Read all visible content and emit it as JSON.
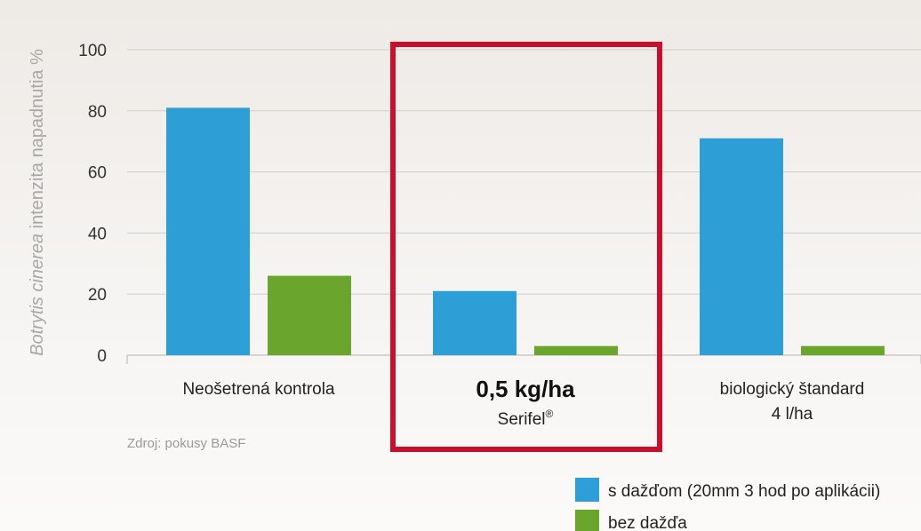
{
  "chart_data": {
    "type": "bar",
    "ylabel_italic": "Botrytis cinerea",
    "ylabel_rest": "intenzita napadnutia %",
    "ylim": [
      0,
      100
    ],
    "yticks": [
      "0",
      "20",
      "40",
      "60",
      "80",
      "100"
    ],
    "grid": true,
    "categories": [
      {
        "line1": "Neošetrená kontrola",
        "line2": ""
      },
      {
        "line1": "0,5 kg/ha",
        "line2": "Serifel",
        "superscript": "®"
      },
      {
        "line1": "biologický štandard",
        "line2": "4 l/ha"
      }
    ],
    "highlighted_category_index": 1,
    "highlight_color": "#c8102e",
    "series": [
      {
        "name": "s dažďom (20mm 3 hod po aplikácii)",
        "color": "#2e9fd6",
        "values": [
          81,
          21,
          71
        ]
      },
      {
        "name": "bez dažďa",
        "color": "#6aa52e",
        "values": [
          26,
          3,
          3
        ]
      }
    ],
    "legend_position": "bottom-right",
    "source_note": "Zdroj: pokusy BASF"
  }
}
